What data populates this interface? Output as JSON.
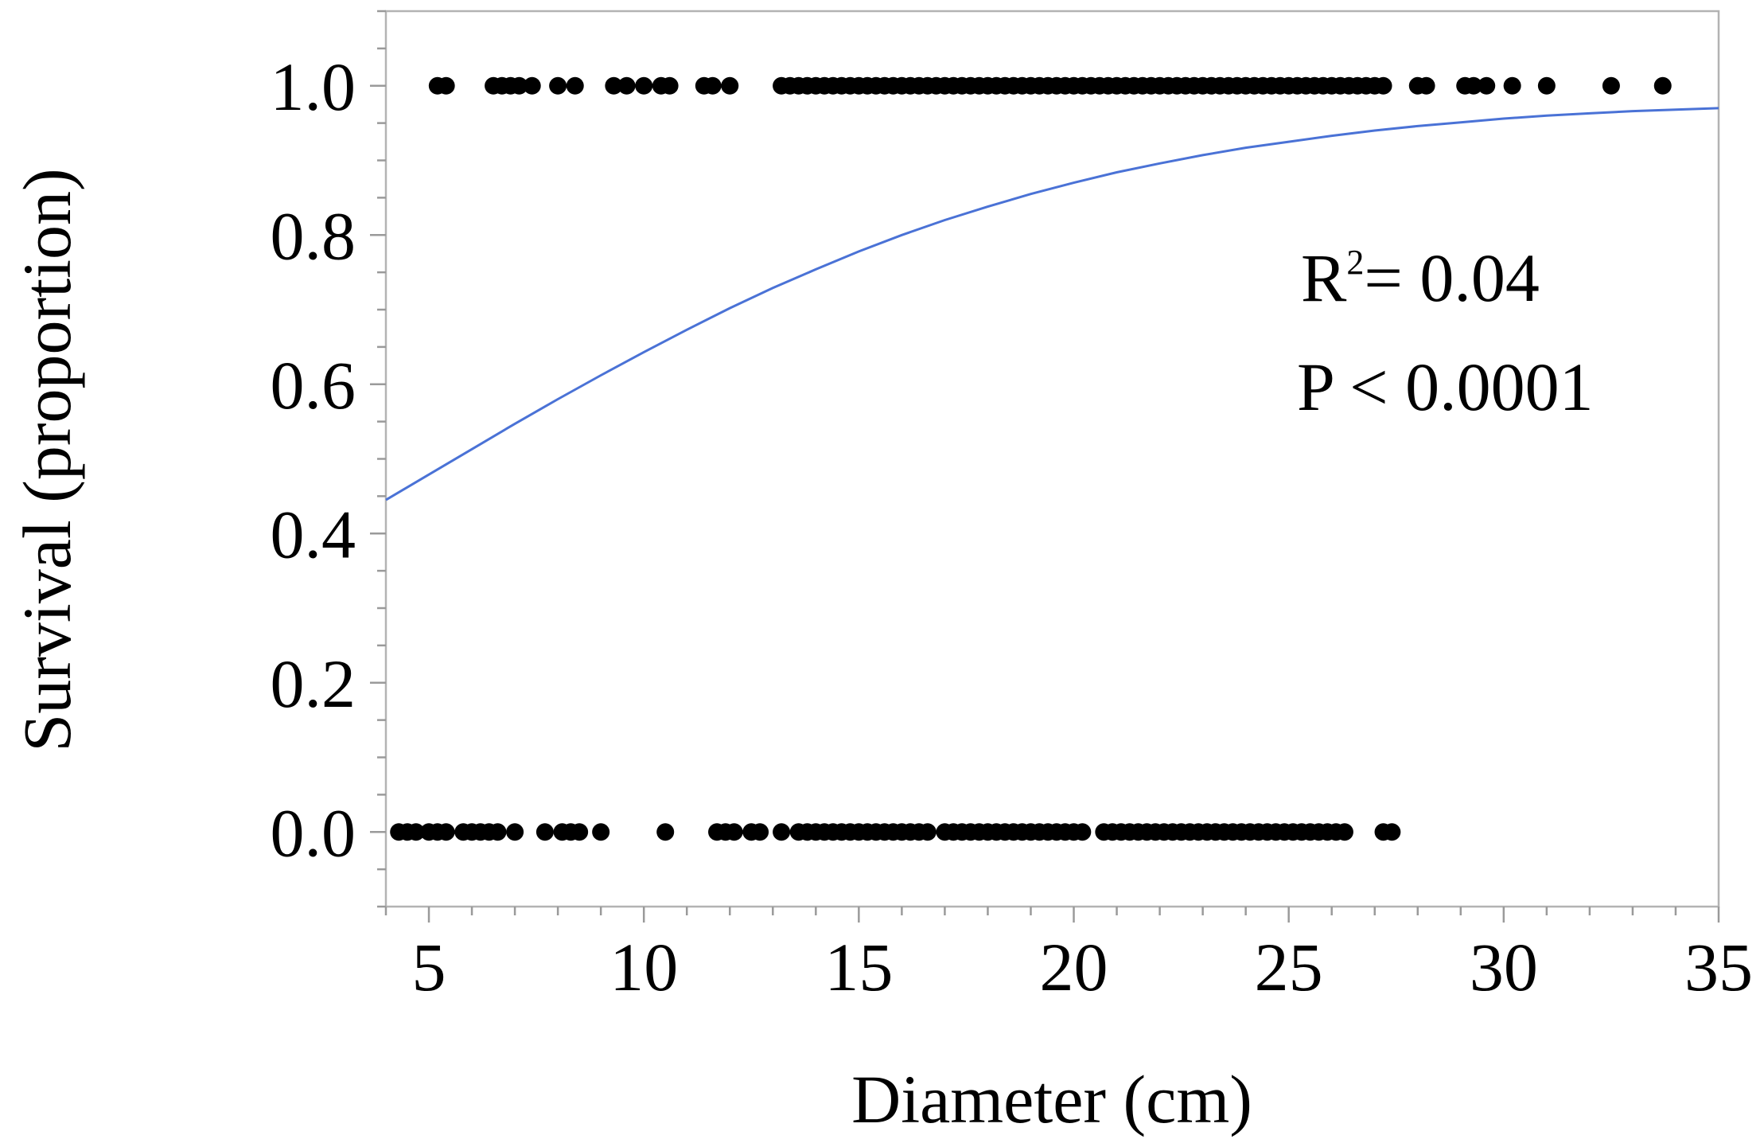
{
  "chart_data": {
    "type": "scatter",
    "xlabel": "Diameter (cm)",
    "ylabel": "Survival (proportion)",
    "xlim": [
      4,
      35
    ],
    "ylim": [
      -0.1,
      1.1
    ],
    "x_ticks": [
      "5",
      "10",
      "15",
      "20",
      "25",
      "30",
      "35"
    ],
    "y_ticks": [
      "0.0",
      "0.2",
      "0.4",
      "0.6",
      "0.8",
      "1.0"
    ],
    "annotation": {
      "r2_prefix": "R",
      "r2_sup": "2",
      "r2_value": "= 0.04",
      "p_text": "P < 0.0001"
    },
    "grid": false,
    "series": [
      {
        "type": "scatter",
        "color": "#000000",
        "points": [
          {
            "x": 5.2,
            "y": 1
          },
          {
            "x": 5.4,
            "y": 1
          },
          {
            "x": 6.5,
            "y": 1
          },
          {
            "x": 6.7,
            "y": 1
          },
          {
            "x": 6.9,
            "y": 1
          },
          {
            "x": 7.1,
            "y": 1
          },
          {
            "x": 7.4,
            "y": 1
          },
          {
            "x": 8.0,
            "y": 1
          },
          {
            "x": 8.4,
            "y": 1
          },
          {
            "x": 9.3,
            "y": 1
          },
          {
            "x": 9.6,
            "y": 1
          },
          {
            "x": 10.0,
            "y": 1
          },
          {
            "x": 10.4,
            "y": 1
          },
          {
            "x": 10.6,
            "y": 1
          },
          {
            "x": 11.4,
            "y": 1
          },
          {
            "x": 11.6,
            "y": 1
          },
          {
            "x": 12.0,
            "y": 1
          },
          {
            "x": 13.2,
            "y": 1
          },
          {
            "x": 13.4,
            "y": 1
          },
          {
            "x": 13.6,
            "y": 1
          },
          {
            "x": 13.8,
            "y": 1
          },
          {
            "x": 14.0,
            "y": 1
          },
          {
            "x": 14.2,
            "y": 1
          },
          {
            "x": 14.4,
            "y": 1
          },
          {
            "x": 14.6,
            "y": 1
          },
          {
            "x": 14.8,
            "y": 1
          },
          {
            "x": 15.0,
            "y": 1
          },
          {
            "x": 15.2,
            "y": 1
          },
          {
            "x": 15.4,
            "y": 1
          },
          {
            "x": 15.6,
            "y": 1
          },
          {
            "x": 15.8,
            "y": 1
          },
          {
            "x": 16.0,
            "y": 1
          },
          {
            "x": 16.2,
            "y": 1
          },
          {
            "x": 16.4,
            "y": 1
          },
          {
            "x": 16.6,
            "y": 1
          },
          {
            "x": 16.8,
            "y": 1
          },
          {
            "x": 17.0,
            "y": 1
          },
          {
            "x": 17.2,
            "y": 1
          },
          {
            "x": 17.4,
            "y": 1
          },
          {
            "x": 17.6,
            "y": 1
          },
          {
            "x": 17.8,
            "y": 1
          },
          {
            "x": 18.0,
            "y": 1
          },
          {
            "x": 18.2,
            "y": 1
          },
          {
            "x": 18.4,
            "y": 1
          },
          {
            "x": 18.6,
            "y": 1
          },
          {
            "x": 18.8,
            "y": 1
          },
          {
            "x": 19.0,
            "y": 1
          },
          {
            "x": 19.2,
            "y": 1
          },
          {
            "x": 19.4,
            "y": 1
          },
          {
            "x": 19.6,
            "y": 1
          },
          {
            "x": 19.8,
            "y": 1
          },
          {
            "x": 20.0,
            "y": 1
          },
          {
            "x": 20.2,
            "y": 1
          },
          {
            "x": 20.4,
            "y": 1
          },
          {
            "x": 20.6,
            "y": 1
          },
          {
            "x": 20.8,
            "y": 1
          },
          {
            "x": 21.0,
            "y": 1
          },
          {
            "x": 21.2,
            "y": 1
          },
          {
            "x": 21.4,
            "y": 1
          },
          {
            "x": 21.6,
            "y": 1
          },
          {
            "x": 21.8,
            "y": 1
          },
          {
            "x": 22.0,
            "y": 1
          },
          {
            "x": 22.2,
            "y": 1
          },
          {
            "x": 22.4,
            "y": 1
          },
          {
            "x": 22.6,
            "y": 1
          },
          {
            "x": 22.8,
            "y": 1
          },
          {
            "x": 23.0,
            "y": 1
          },
          {
            "x": 23.2,
            "y": 1
          },
          {
            "x": 23.4,
            "y": 1
          },
          {
            "x": 23.6,
            "y": 1
          },
          {
            "x": 23.8,
            "y": 1
          },
          {
            "x": 24.0,
            "y": 1
          },
          {
            "x": 24.2,
            "y": 1
          },
          {
            "x": 24.4,
            "y": 1
          },
          {
            "x": 24.6,
            "y": 1
          },
          {
            "x": 24.8,
            "y": 1
          },
          {
            "x": 25.0,
            "y": 1
          },
          {
            "x": 25.2,
            "y": 1
          },
          {
            "x": 25.4,
            "y": 1
          },
          {
            "x": 25.6,
            "y": 1
          },
          {
            "x": 25.8,
            "y": 1
          },
          {
            "x": 26.0,
            "y": 1
          },
          {
            "x": 26.2,
            "y": 1
          },
          {
            "x": 26.4,
            "y": 1
          },
          {
            "x": 26.6,
            "y": 1
          },
          {
            "x": 26.8,
            "y": 1
          },
          {
            "x": 27.0,
            "y": 1
          },
          {
            "x": 27.2,
            "y": 1
          },
          {
            "x": 28.0,
            "y": 1
          },
          {
            "x": 28.2,
            "y": 1
          },
          {
            "x": 29.1,
            "y": 1
          },
          {
            "x": 29.3,
            "y": 1
          },
          {
            "x": 29.6,
            "y": 1
          },
          {
            "x": 30.2,
            "y": 1
          },
          {
            "x": 31.0,
            "y": 1
          },
          {
            "x": 32.5,
            "y": 1
          },
          {
            "x": 33.7,
            "y": 1
          },
          {
            "x": 4.3,
            "y": 0
          },
          {
            "x": 4.5,
            "y": 0
          },
          {
            "x": 4.7,
            "y": 0
          },
          {
            "x": 5.0,
            "y": 0
          },
          {
            "x": 5.2,
            "y": 0
          },
          {
            "x": 5.4,
            "y": 0
          },
          {
            "x": 5.8,
            "y": 0
          },
          {
            "x": 6.0,
            "y": 0
          },
          {
            "x": 6.2,
            "y": 0
          },
          {
            "x": 6.4,
            "y": 0
          },
          {
            "x": 6.6,
            "y": 0
          },
          {
            "x": 7.0,
            "y": 0
          },
          {
            "x": 7.7,
            "y": 0
          },
          {
            "x": 8.1,
            "y": 0
          },
          {
            "x": 8.3,
            "y": 0
          },
          {
            "x": 8.5,
            "y": 0
          },
          {
            "x": 9.0,
            "y": 0
          },
          {
            "x": 10.5,
            "y": 0
          },
          {
            "x": 11.7,
            "y": 0
          },
          {
            "x": 11.9,
            "y": 0
          },
          {
            "x": 12.1,
            "y": 0
          },
          {
            "x": 12.5,
            "y": 0
          },
          {
            "x": 12.7,
            "y": 0
          },
          {
            "x": 13.2,
            "y": 0
          },
          {
            "x": 13.6,
            "y": 0
          },
          {
            "x": 13.8,
            "y": 0
          },
          {
            "x": 14.0,
            "y": 0
          },
          {
            "x": 14.2,
            "y": 0
          },
          {
            "x": 14.4,
            "y": 0
          },
          {
            "x": 14.6,
            "y": 0
          },
          {
            "x": 14.8,
            "y": 0
          },
          {
            "x": 15.0,
            "y": 0
          },
          {
            "x": 15.2,
            "y": 0
          },
          {
            "x": 15.4,
            "y": 0
          },
          {
            "x": 15.6,
            "y": 0
          },
          {
            "x": 15.8,
            "y": 0
          },
          {
            "x": 16.0,
            "y": 0
          },
          {
            "x": 16.2,
            "y": 0
          },
          {
            "x": 16.4,
            "y": 0
          },
          {
            "x": 16.6,
            "y": 0
          },
          {
            "x": 17.0,
            "y": 0
          },
          {
            "x": 17.2,
            "y": 0
          },
          {
            "x": 17.4,
            "y": 0
          },
          {
            "x": 17.6,
            "y": 0
          },
          {
            "x": 17.8,
            "y": 0
          },
          {
            "x": 18.0,
            "y": 0
          },
          {
            "x": 18.2,
            "y": 0
          },
          {
            "x": 18.4,
            "y": 0
          },
          {
            "x": 18.6,
            "y": 0
          },
          {
            "x": 18.8,
            "y": 0
          },
          {
            "x": 19.0,
            "y": 0
          },
          {
            "x": 19.2,
            "y": 0
          },
          {
            "x": 19.4,
            "y": 0
          },
          {
            "x": 19.6,
            "y": 0
          },
          {
            "x": 19.8,
            "y": 0
          },
          {
            "x": 20.0,
            "y": 0
          },
          {
            "x": 20.2,
            "y": 0
          },
          {
            "x": 20.7,
            "y": 0
          },
          {
            "x": 20.9,
            "y": 0
          },
          {
            "x": 21.1,
            "y": 0
          },
          {
            "x": 21.3,
            "y": 0
          },
          {
            "x": 21.5,
            "y": 0
          },
          {
            "x": 21.7,
            "y": 0
          },
          {
            "x": 21.9,
            "y": 0
          },
          {
            "x": 22.1,
            "y": 0
          },
          {
            "x": 22.3,
            "y": 0
          },
          {
            "x": 22.5,
            "y": 0
          },
          {
            "x": 22.7,
            "y": 0
          },
          {
            "x": 22.9,
            "y": 0
          },
          {
            "x": 23.1,
            "y": 0
          },
          {
            "x": 23.3,
            "y": 0
          },
          {
            "x": 23.5,
            "y": 0
          },
          {
            "x": 23.7,
            "y": 0
          },
          {
            "x": 23.9,
            "y": 0
          },
          {
            "x": 24.1,
            "y": 0
          },
          {
            "x": 24.3,
            "y": 0
          },
          {
            "x": 24.5,
            "y": 0
          },
          {
            "x": 24.7,
            "y": 0
          },
          {
            "x": 24.9,
            "y": 0
          },
          {
            "x": 25.1,
            "y": 0
          },
          {
            "x": 25.3,
            "y": 0
          },
          {
            "x": 25.5,
            "y": 0
          },
          {
            "x": 25.7,
            "y": 0
          },
          {
            "x": 25.9,
            "y": 0
          },
          {
            "x": 26.1,
            "y": 0
          },
          {
            "x": 26.3,
            "y": 0
          },
          {
            "x": 27.2,
            "y": 0
          },
          {
            "x": 27.4,
            "y": 0
          }
        ]
      },
      {
        "type": "line",
        "color": "#4a72d6",
        "x": [
          4,
          5,
          6,
          7,
          8,
          9,
          10,
          11,
          12,
          13,
          14,
          15,
          16,
          17,
          18,
          19,
          20,
          21,
          22,
          23,
          24,
          25,
          26,
          27,
          28,
          29,
          30,
          31,
          32,
          33,
          34,
          35
        ],
        "y": [
          0.445,
          0.479,
          0.513,
          0.547,
          0.58,
          0.612,
          0.643,
          0.673,
          0.702,
          0.729,
          0.754,
          0.778,
          0.8,
          0.82,
          0.838,
          0.855,
          0.87,
          0.884,
          0.896,
          0.907,
          0.917,
          0.925,
          0.933,
          0.94,
          0.946,
          0.951,
          0.956,
          0.96,
          0.963,
          0.966,
          0.968,
          0.97
        ]
      }
    ]
  }
}
